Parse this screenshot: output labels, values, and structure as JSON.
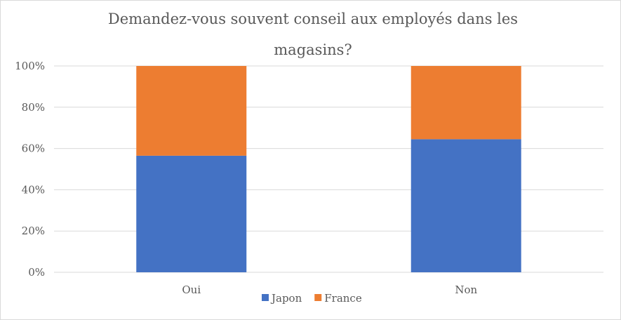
{
  "chart_data": {
    "type": "bar",
    "stacked": true,
    "percent_stacked": true,
    "title": "Demandez-vous souvent conseil aux employés dans les magasins?",
    "title_lines": [
      "Demandez-vous souvent conseil aux employés dans les",
      "magasins?"
    ],
    "categories": [
      "Oui",
      "Non"
    ],
    "series": [
      {
        "name": "Japon",
        "values": [
          56.5,
          64.5
        ],
        "color": "#4472c4"
      },
      {
        "name": "France",
        "values": [
          43.5,
          35.5
        ],
        "color": "#ed7d31"
      }
    ],
    "y_ticks": [
      "0%",
      "20%",
      "40%",
      "60%",
      "80%",
      "100%"
    ],
    "ylim": [
      0,
      100
    ],
    "grid": true,
    "legend_position": "bottom"
  }
}
